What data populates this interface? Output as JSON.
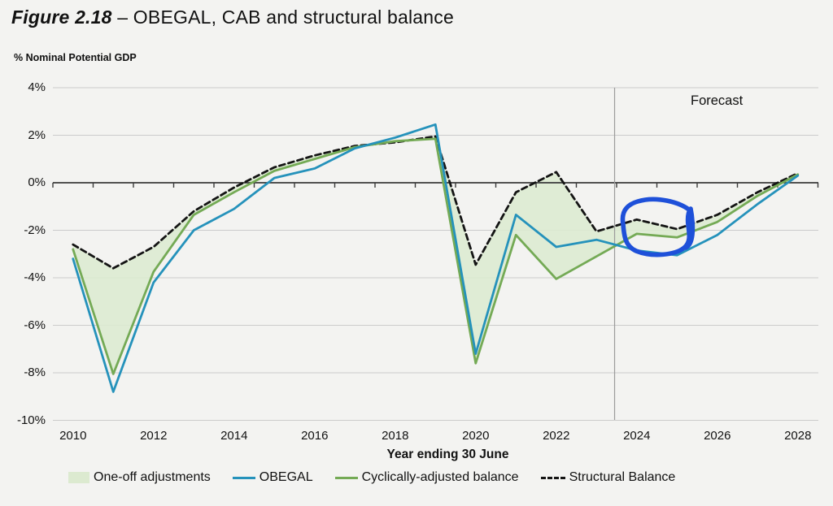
{
  "title": {
    "prefix": "Figure 2.18",
    "rest": " – OBEGAL, CAB and structural balance"
  },
  "labels": {
    "unit": "% Nominal Potential GDP",
    "forecast": "Forecast",
    "xaxis": "Year ending 30 June"
  },
  "legend": {
    "items": [
      {
        "label": "One-off adjustments",
        "swatch": "fill",
        "color": "#dcead0"
      },
      {
        "label": "OBEGAL",
        "swatch": "line",
        "color": "#2592bb"
      },
      {
        "label": "Cyclically-adjusted balance",
        "swatch": "line",
        "color": "#74aa55"
      },
      {
        "label": "Structural Balance",
        "swatch": "dashed-line",
        "color": "#141414"
      }
    ]
  },
  "chart_data": {
    "type": "line",
    "title": "Figure 2.18 – OBEGAL, CAB and structural balance",
    "xlabel": "Year ending 30 June",
    "ylabel": "% Nominal Potential GDP",
    "x": [
      2010,
      2011,
      2012,
      2013,
      2014,
      2015,
      2016,
      2017,
      2018,
      2019,
      2020,
      2021,
      2022,
      2023,
      2024,
      2025,
      2026,
      2027,
      2028
    ],
    "series": [
      {
        "name": "OBEGAL",
        "color": "#2592bb",
        "style": "solid",
        "values": [
          -3.2,
          -8.8,
          -4.2,
          -2.0,
          -1.1,
          0.2,
          0.6,
          1.45,
          1.9,
          2.45,
          -7.2,
          -1.35,
          -2.7,
          -2.4,
          -2.85,
          -3.05,
          -2.2,
          -0.9,
          0.3
        ]
      },
      {
        "name": "Cyclically-adjusted balance",
        "color": "#74aa55",
        "style": "solid",
        "values": [
          -2.8,
          -8.05,
          -3.75,
          -1.35,
          -0.4,
          0.5,
          1.0,
          1.5,
          1.75,
          1.85,
          -7.6,
          -2.2,
          -4.05,
          -3.1,
          -2.15,
          -2.3,
          -1.65,
          -0.55,
          0.35
        ]
      },
      {
        "name": "Structural Balance",
        "color": "#141414",
        "style": "dashed",
        "values": [
          -2.6,
          -3.6,
          -2.7,
          -1.2,
          -0.2,
          0.65,
          1.15,
          1.55,
          1.7,
          1.95,
          -3.45,
          -0.4,
          0.45,
          -2.05,
          -1.55,
          -1.95,
          -1.35,
          -0.4,
          0.4
        ]
      }
    ],
    "band": {
      "name": "One-off adjustments",
      "between": [
        "Cyclically-adjusted balance",
        "Structural Balance"
      ],
      "fill": "#dcead0"
    },
    "ylim": [
      -10,
      4
    ],
    "yticks": [
      4,
      2,
      0,
      -2,
      -4,
      -6,
      -8,
      -10
    ],
    "ytick_labels": [
      "4%",
      "2%",
      "0%",
      "-2%",
      "-4%",
      "-6%",
      "-8%",
      "-10%"
    ],
    "xtick_labels": [
      "2010",
      "2012",
      "2014",
      "2016",
      "2018",
      "2020",
      "2022",
      "2024",
      "2026",
      "2028"
    ],
    "forecast_divider_x": 2023.45,
    "grid": true,
    "legend_position": "bottom",
    "annotation": {
      "type": "hand-drawn circle",
      "color": "#1e50d9",
      "target": "structural balance dip, 2024–2025"
    }
  }
}
